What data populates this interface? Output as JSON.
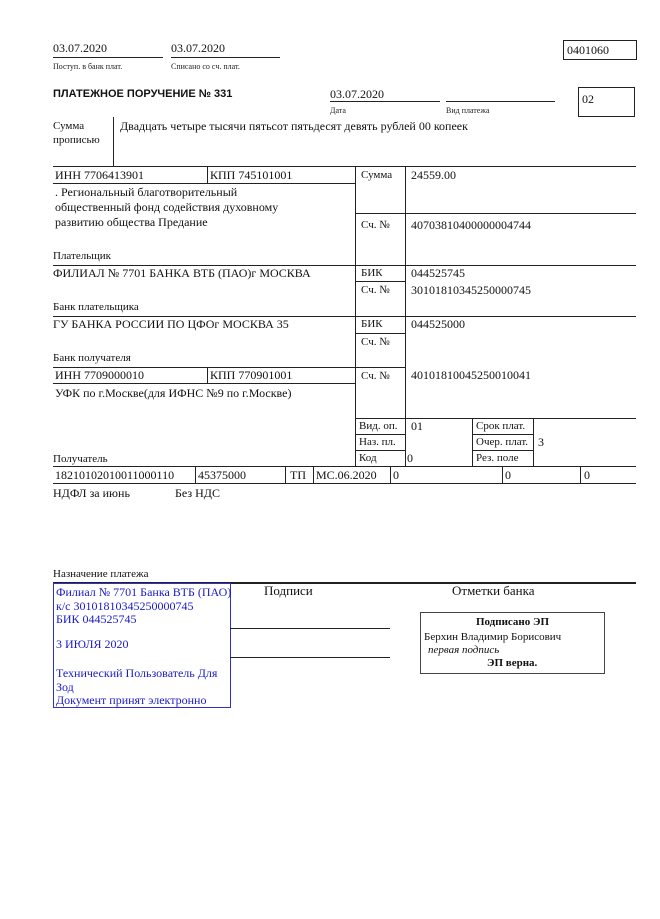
{
  "header": {
    "received_date": "03.07.2020",
    "received_label": "Поступ. в банк плат.",
    "debited_date": "03.07.2020",
    "debited_label": "Списано со сч. плат.",
    "form_code": "0401060"
  },
  "title": "ПЛАТЕЖНОЕ ПОРУЧЕНИЕ № 331",
  "date": "03.07.2020",
  "date_label": "Дата",
  "payment_type_label": "Вид платежа",
  "status_code": "02",
  "amount_words_label": "Сумма прописью",
  "amount_words": "Двадцать четыре тысячи пятьсот пятьдесят девять рублей 00 копеек",
  "payer": {
    "inn": "ИНН 7706413901",
    "kpp": "КПП 745101001",
    "name_lines": [
      ". Региональный благотворительный",
      "общественный фонд содействия духовному",
      "развитию общества Предание"
    ],
    "label": "Плательщик",
    "amount_label": "Сумма",
    "amount": "24559.00",
    "account_label": "Сч. №",
    "account": "40703810400000004744"
  },
  "payer_bank": {
    "name": "ФИЛИАЛ № 7701 БАНКА ВТБ (ПАО)г МОСКВА",
    "label": "Банк плательщика",
    "bik_label": "БИК",
    "bik": "044525745",
    "account_label": "Сч. №",
    "account": "30101810345250000745"
  },
  "payee_bank": {
    "name": "ГУ БАНКА РОССИИ ПО ЦФОг МОСКВА 35",
    "label": "Банк получателя",
    "bik_label": "БИК",
    "bik": "044525000",
    "account_label": "Сч. №"
  },
  "payee": {
    "inn": "ИНН 7709000010",
    "kpp": "КПП 770901001",
    "name": "УФК по г.Москве(для ИФНС №9 по г.Москве)",
    "label": "Получатель",
    "account_label": "Сч. №",
    "account": "40101810045250010041"
  },
  "codes": {
    "op_type_label": "Вид. оп.",
    "op_type": "01",
    "purpose_label": "Наз. пл.",
    "code_label": "Код",
    "code": "0",
    "term_label": "Срок плат.",
    "order_label": "Очер. плат.",
    "order": "3",
    "reserve_label": "Рез. поле"
  },
  "tax_row": [
    "18210102010011000110",
    "45375000",
    "ТП",
    "МС.06.2020",
    "0",
    "0",
    "0"
  ],
  "purpose_text": [
    "НДФЛ за июнь",
    "Без НДС"
  ],
  "purpose_label": "Назначение платежа",
  "bank_stamp": [
    "Филиал № 7701 Банка ВТБ (ПАО)",
    "к/с 30101810345250000745",
    "БИК 044525745",
    "3 ИЮЛЯ 2020",
    "Технический Пользователь Для",
    "Зод",
    "Документ принят электронно"
  ],
  "signatures_label": "Подписи",
  "bank_marks_label": "Отметки банка",
  "esign": {
    "title": "Подписано ЭП",
    "signer": "Берхин Владимир Борисович",
    "role": "первая подпись",
    "verdict": "ЭП верна."
  }
}
